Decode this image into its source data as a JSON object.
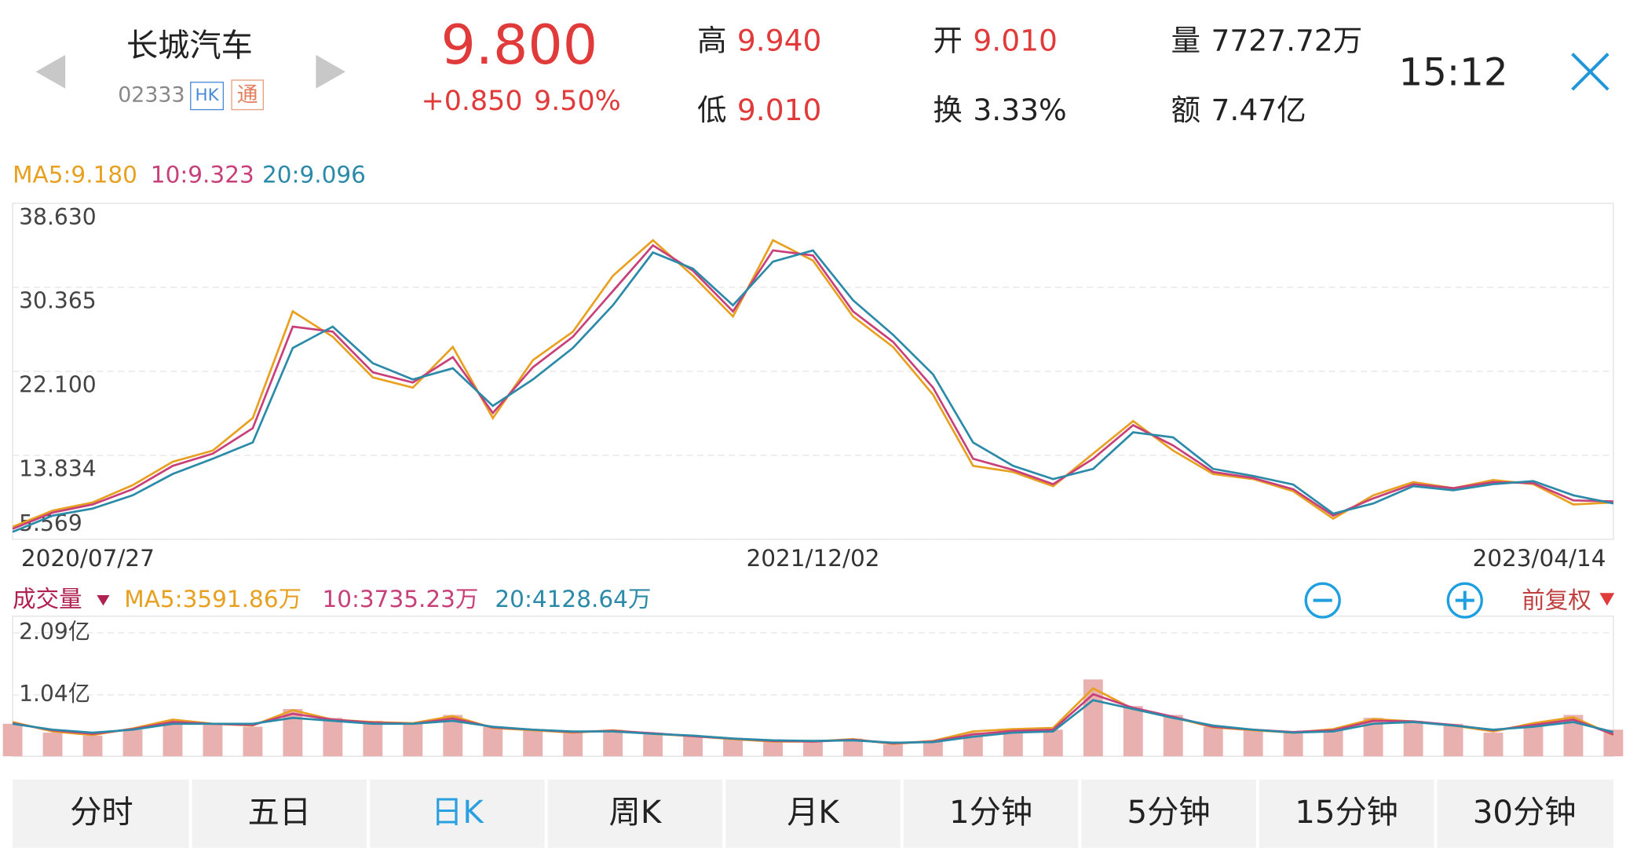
{
  "header": {
    "name": "长城汽车",
    "code": "02333",
    "badges": [
      "HK",
      "通"
    ],
    "price": "9.800",
    "change": "+0.850",
    "change_pct": "9.50%",
    "stats": [
      {
        "label": "高",
        "value": "9.940"
      },
      {
        "label": "低",
        "value": "9.010"
      },
      {
        "label": "开",
        "value": "9.010"
      },
      {
        "label": "换",
        "value": "3.33%"
      },
      {
        "label": "量",
        "value": "7727.72万"
      },
      {
        "label": "额",
        "value": "7.47亿"
      }
    ],
    "time": "15:12"
  },
  "chart_data": [
    {
      "type": "line",
      "categories": [
        "2020/07/27",
        null,
        null,
        null,
        null,
        null,
        null,
        null,
        null,
        null,
        null,
        null,
        null,
        null,
        null,
        null,
        null,
        null,
        null,
        null,
        "2021/12/02",
        null,
        null,
        null,
        null,
        null,
        null,
        null,
        null,
        null,
        null,
        null,
        null,
        null,
        null,
        null,
        null,
        null,
        null,
        null,
        "2023/04/14"
      ],
      "ylim": [
        5.569,
        38.63
      ],
      "yticks": [
        {
          "value": 38.63,
          "label": "38.630"
        },
        {
          "value": 30.365,
          "label": "30.365"
        },
        {
          "value": 22.1,
          "label": "22.100"
        },
        {
          "value": 13.834,
          "label": "13.834"
        },
        {
          "value": 5.569,
          "label": "5.569"
        }
      ],
      "grid": true,
      "series": [
        {
          "name": "MA5:9.180",
          "color": "#e8a020",
          "values": [
            6.8,
            8.4,
            9.2,
            10.9,
            13.2,
            14.3,
            17.5,
            28.0,
            25.5,
            21.5,
            20.5,
            24.5,
            17.5,
            23.2,
            26.0,
            31.5,
            35.0,
            31.5,
            27.5,
            35.0,
            33.0,
            27.5,
            24.5,
            19.8,
            12.8,
            12.2,
            10.8,
            14.0,
            17.2,
            14.3,
            12.0,
            11.5,
            10.3,
            7.6,
            9.9,
            11.2,
            10.6,
            11.4,
            11.0,
            9.0,
            9.2
          ]
        },
        {
          "name": "10:9.323",
          "color": "#c8407a",
          "values": [
            6.6,
            8.2,
            9.0,
            10.5,
            12.8,
            14.0,
            16.5,
            26.5,
            26.0,
            22.0,
            21.0,
            23.5,
            18.0,
            22.5,
            25.5,
            30.0,
            34.5,
            32.0,
            28.0,
            34.0,
            33.5,
            28.0,
            25.0,
            20.5,
            13.5,
            12.4,
            11.0,
            13.5,
            16.8,
            14.8,
            12.2,
            11.6,
            10.5,
            7.9,
            9.6,
            11.0,
            10.6,
            11.2,
            11.1,
            9.4,
            9.3
          ]
        },
        {
          "name": "20:9.096",
          "color": "#2a8aa8",
          "values": [
            6.3,
            7.9,
            8.6,
            9.9,
            12.0,
            13.5,
            15.1,
            24.4,
            26.5,
            22.9,
            21.3,
            22.4,
            18.7,
            21.3,
            24.4,
            28.6,
            33.8,
            32.2,
            28.6,
            32.9,
            34.0,
            29.1,
            25.7,
            21.8,
            15.1,
            12.8,
            11.5,
            12.5,
            16.1,
            15.6,
            12.5,
            11.8,
            10.96,
            8.1,
            9.1,
            10.8,
            10.4,
            11.0,
            11.3,
            9.9,
            9.1
          ]
        }
      ]
    },
    {
      "type": "bar",
      "title": "成交量",
      "ylim": [
        0,
        2.37
      ],
      "yticks": [
        {
          "value": 2.09,
          "label": "2.09亿"
        },
        {
          "value": 1.04,
          "label": "1.04亿"
        }
      ],
      "color": "#e9b0b0",
      "values": [
        0.55,
        0.4,
        0.35,
        0.45,
        0.6,
        0.55,
        0.5,
        0.8,
        0.65,
        0.6,
        0.55,
        0.7,
        0.5,
        0.45,
        0.4,
        0.45,
        0.4,
        0.35,
        0.3,
        0.25,
        0.25,
        0.3,
        0.2,
        0.25,
        0.4,
        0.45,
        0.45,
        1.3,
        0.85,
        0.7,
        0.5,
        0.45,
        0.4,
        0.45,
        0.65,
        0.6,
        0.55,
        0.4,
        0.55,
        0.7,
        0.45
      ],
      "series": [
        {
          "name": "MA5:3591.86万",
          "color": "#e8a020",
          "values": [
            0.58,
            0.42,
            0.36,
            0.47,
            0.62,
            0.55,
            0.52,
            0.78,
            0.62,
            0.58,
            0.56,
            0.68,
            0.48,
            0.44,
            0.4,
            0.44,
            0.38,
            0.34,
            0.29,
            0.25,
            0.25,
            0.29,
            0.21,
            0.26,
            0.42,
            0.46,
            0.48,
            1.15,
            0.8,
            0.66,
            0.49,
            0.44,
            0.4,
            0.46,
            0.63,
            0.59,
            0.52,
            0.42,
            0.56,
            0.66,
            0.36
          ]
        },
        {
          "name": "10:3735.23万",
          "color": "#c8407a",
          "values": [
            0.56,
            0.44,
            0.38,
            0.46,
            0.58,
            0.55,
            0.53,
            0.72,
            0.62,
            0.57,
            0.55,
            0.64,
            0.49,
            0.45,
            0.41,
            0.43,
            0.39,
            0.34,
            0.3,
            0.26,
            0.25,
            0.28,
            0.22,
            0.25,
            0.37,
            0.43,
            0.45,
            1.05,
            0.82,
            0.67,
            0.5,
            0.45,
            0.41,
            0.44,
            0.6,
            0.59,
            0.53,
            0.44,
            0.53,
            0.62,
            0.37
          ]
        },
        {
          "name": "20:4128.64万",
          "color": "#2a8aa8",
          "values": [
            0.55,
            0.45,
            0.4,
            0.45,
            0.55,
            0.55,
            0.55,
            0.65,
            0.6,
            0.55,
            0.55,
            0.6,
            0.5,
            0.45,
            0.42,
            0.42,
            0.38,
            0.35,
            0.3,
            0.27,
            0.26,
            0.27,
            0.23,
            0.24,
            0.33,
            0.4,
            0.42,
            0.95,
            0.8,
            0.65,
            0.52,
            0.45,
            0.4,
            0.42,
            0.55,
            0.58,
            0.52,
            0.45,
            0.5,
            0.58,
            0.41
          ]
        }
      ]
    }
  ],
  "adjust": "前复权",
  "tabs": [
    "分时",
    "五日",
    "日K",
    "周K",
    "月K",
    "1分钟",
    "5分钟",
    "15分钟",
    "30分钟"
  ],
  "active_tab": 2
}
